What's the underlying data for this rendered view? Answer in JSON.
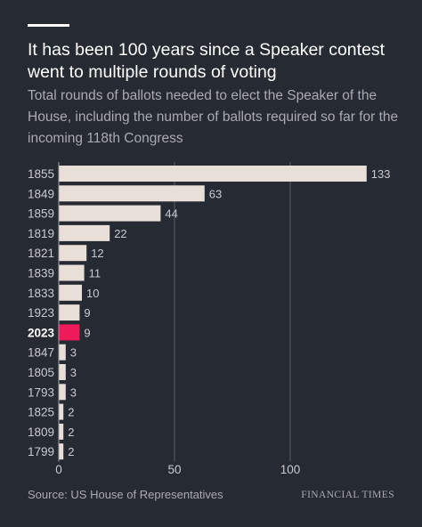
{
  "header": {
    "title": "It has been 100 years since a Speaker contest went to multiple rounds of voting",
    "subtitle": "Total rounds of ballots needed to elect the Speaker of the House, including the number of ballots required so far for the incoming 118th Congress"
  },
  "footer": {
    "source": "Source: US House of Representatives",
    "brand": "FINANCIAL TIMES"
  },
  "colors": {
    "background": "#262a33",
    "bar": "#e9dfd9",
    "highlight": "#ee1a5a",
    "gridline": "#5c5f66",
    "label": "#c9cbd0"
  },
  "chart_data": {
    "type": "bar",
    "orientation": "horizontal",
    "categories": [
      "1855",
      "1849",
      "1859",
      "1819",
      "1821",
      "1839",
      "1833",
      "1923",
      "2023",
      "1847",
      "1805",
      "1793",
      "1825",
      "1809",
      "1799"
    ],
    "values": [
      133,
      63,
      44,
      22,
      12,
      11,
      10,
      9,
      9,
      3,
      3,
      3,
      2,
      2,
      2
    ],
    "highlight_category": "2023",
    "xlim": [
      0,
      140
    ],
    "xticks": [
      0,
      50,
      100
    ],
    "grid": true,
    "data_labels": true
  }
}
